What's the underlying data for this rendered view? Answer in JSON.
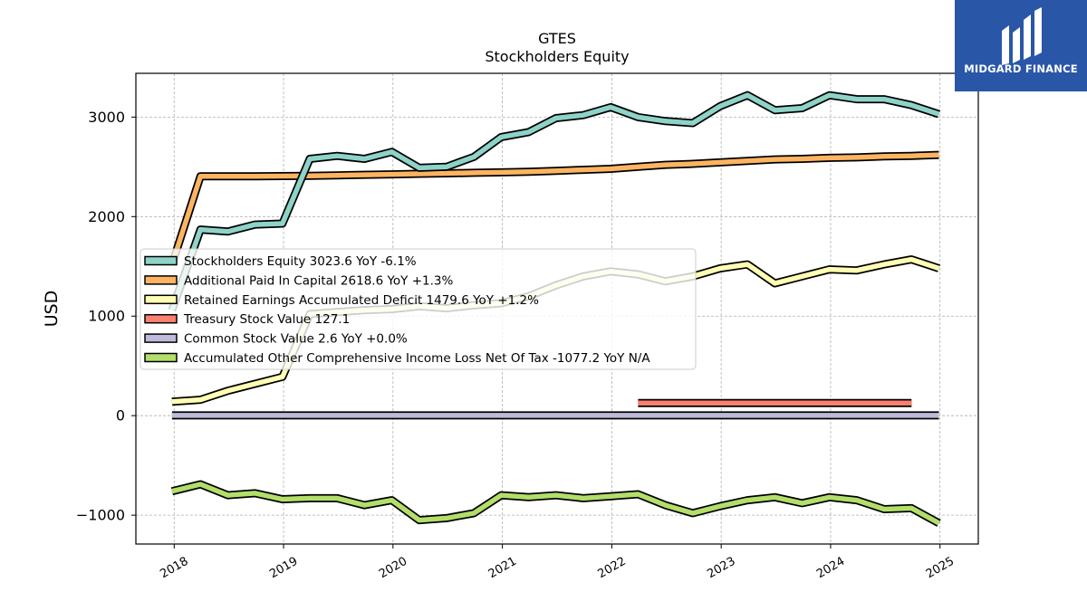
{
  "brand": {
    "name": "MIDGARD FINANCE",
    "color": "#2a56a8"
  },
  "chart_data": {
    "type": "line",
    "title": "GTES",
    "subtitle": "Stockholders  Equity",
    "ylabel": "USD",
    "xlim": [
      2017.65,
      2025.35
    ],
    "ylim": [
      -1290,
      3440
    ],
    "yticks": [
      -1000,
      0,
      1000,
      2000,
      3000
    ],
    "ytick_labels": [
      "−1000",
      "0",
      "1000",
      "2000",
      "3000"
    ],
    "xticks": [
      2018,
      2019,
      2020,
      2021,
      2022,
      2023,
      2024,
      2025
    ],
    "xtick_labels": [
      "2018",
      "2019",
      "2020",
      "2021",
      "2022",
      "2023",
      "2024",
      "2025"
    ],
    "grid": true,
    "legend_position": "center-left",
    "series": [
      {
        "name": "Stockholders Equity  3023.6 YoY -6.1%",
        "color": "#8dd3c7",
        "x": [
          2017.98,
          2018.24,
          2018.49,
          2018.74,
          2018.99,
          2019.24,
          2019.49,
          2019.74,
          2019.99,
          2020.24,
          2020.49,
          2020.74,
          2020.99,
          2021.24,
          2021.49,
          2021.74,
          2021.99,
          2022.24,
          2022.49,
          2022.74,
          2022.99,
          2023.24,
          2023.49,
          2023.74,
          2023.99,
          2024.24,
          2024.49,
          2024.74,
          2024.99
        ],
        "y": [
          1060,
          1870,
          1850,
          1920,
          1930,
          2580,
          2610,
          2580,
          2650,
          2490,
          2500,
          2600,
          2800,
          2850,
          2990,
          3020,
          3100,
          3000,
          2960,
          2940,
          3110,
          3220,
          3070,
          3090,
          3220,
          3180,
          3180,
          3120,
          3030
        ]
      },
      {
        "name": "Additional Paid In Capital  2618.6 YoY +1.3%",
        "color": "#fdb462",
        "x": [
          2017.98,
          2018.24,
          2018.49,
          2018.74,
          2018.99,
          2019.24,
          2019.49,
          2019.74,
          2019.99,
          2020.24,
          2020.49,
          2020.74,
          2020.99,
          2021.24,
          2021.49,
          2021.74,
          2021.99,
          2022.24,
          2022.49,
          2022.74,
          2022.99,
          2023.24,
          2023.49,
          2023.74,
          2023.99,
          2024.24,
          2024.49,
          2024.74,
          2024.99
        ],
        "y": [
          1520,
          2405,
          2405,
          2405,
          2408,
          2410,
          2415,
          2420,
          2425,
          2430,
          2435,
          2440,
          2445,
          2450,
          2460,
          2470,
          2480,
          2500,
          2520,
          2530,
          2545,
          2560,
          2575,
          2580,
          2590,
          2595,
          2605,
          2610,
          2620
        ]
      },
      {
        "name": "Retained Earnings Accumulated Deficit  1479.6 YoY +1.2%",
        "color": "#ffffb3",
        "x": [
          2017.98,
          2018.24,
          2018.49,
          2018.74,
          2018.99,
          2019.24,
          2019.49,
          2019.74,
          2019.99,
          2020.24,
          2020.49,
          2020.74,
          2020.99,
          2021.24,
          2021.49,
          2021.74,
          2021.99,
          2022.24,
          2022.49,
          2022.74,
          2022.99,
          2023.24,
          2023.49,
          2023.74,
          2023.99,
          2024.24,
          2024.49,
          2024.74,
          2024.99
        ],
        "y": [
          140,
          160,
          250,
          320,
          390,
          1020,
          1040,
          1060,
          1070,
          1100,
          1080,
          1110,
          1130,
          1200,
          1310,
          1400,
          1450,
          1420,
          1350,
          1400,
          1480,
          1520,
          1330,
          1400,
          1470,
          1460,
          1520,
          1570,
          1480
        ]
      },
      {
        "name": "Treasury Stock Value  127.1",
        "color": "#fb8072",
        "x": [
          2022.24,
          2024.74
        ],
        "y": [
          127,
          127
        ]
      },
      {
        "name": "Common Stock Value  2.6 YoY +0.0%",
        "color": "#bebada",
        "x": [
          2017.98,
          2024.99
        ],
        "y": [
          3,
          3
        ]
      },
      {
        "name": "Accumulated Other Comprehensive Income Loss Net Of Tax  -1077.2 YoY N/A",
        "color": "#b3de69",
        "x": [
          2017.98,
          2018.24,
          2018.49,
          2018.74,
          2018.99,
          2019.24,
          2019.49,
          2019.74,
          2019.99,
          2020.24,
          2020.49,
          2020.74,
          2020.99,
          2021.24,
          2021.49,
          2021.74,
          2021.99,
          2022.24,
          2022.49,
          2022.74,
          2022.99,
          2023.24,
          2023.49,
          2023.74,
          2023.99,
          2024.24,
          2024.49,
          2024.74,
          2024.99
        ],
        "y": [
          -760,
          -690,
          -800,
          -780,
          -840,
          -830,
          -830,
          -900,
          -850,
          -1050,
          -1030,
          -980,
          -800,
          -820,
          -800,
          -830,
          -810,
          -790,
          -900,
          -980,
          -910,
          -850,
          -820,
          -880,
          -820,
          -850,
          -940,
          -930,
          -1080
        ]
      }
    ]
  }
}
